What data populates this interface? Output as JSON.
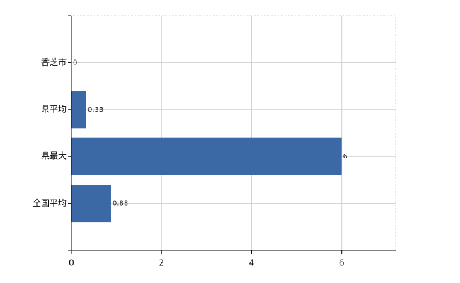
{
  "chart_data": {
    "type": "bar",
    "orientation": "horizontal",
    "categories": [
      "香芝市",
      "県平均",
      "県最大",
      "全国平均"
    ],
    "values": [
      0,
      0.33,
      6,
      0.88
    ],
    "color": "#3a69a6",
    "xlim": [
      0,
      7.2
    ],
    "xticks": [
      0,
      2,
      4,
      6
    ],
    "grid": true
  }
}
